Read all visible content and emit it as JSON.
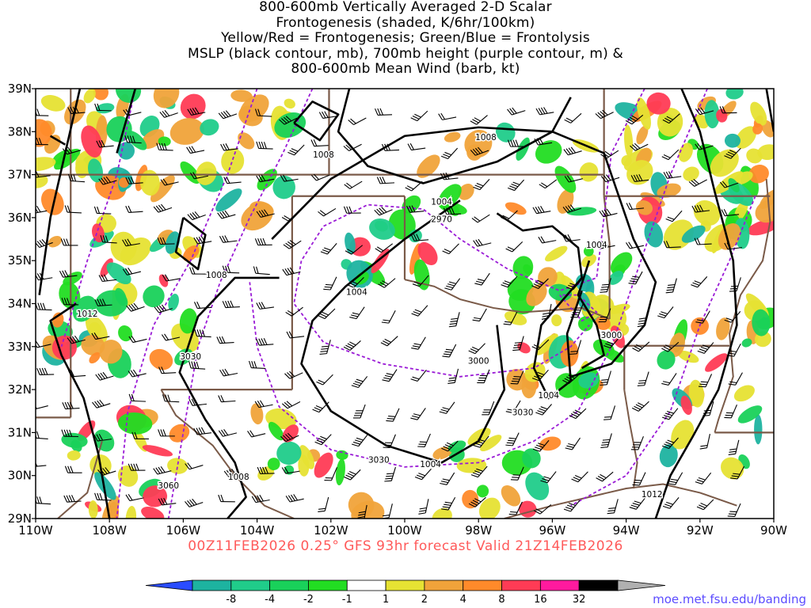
{
  "title": {
    "lines": [
      "800-600mb Vertically Averaged 2-D Scalar",
      "Frontogenesis (shaded, K/6hr/100km)",
      "Yellow/Red = Frontogenesis;  Green/Blue = Frontolysis",
      "MSLP (black contour, mb), 700mb height (purple contour, m) &",
      "800-600mb Mean Wind (barb, kt)"
    ]
  },
  "valid_text": "00Z11FEB2026 0.25° GFS 93hr forecast Valid 21Z14FEB2026",
  "credit": "moe.met.fsu.edu/banding",
  "map": {
    "lon_range": [
      -110,
      -90
    ],
    "lat_range": [
      29,
      39
    ],
    "lon_labels": [
      "110W",
      "108W",
      "106W",
      "104W",
      "102W",
      "100W",
      "98W",
      "96W",
      "94W",
      "92W",
      "90W"
    ],
    "lat_labels": [
      "29N",
      "30N",
      "31N",
      "32N",
      "33N",
      "34N",
      "35N",
      "36N",
      "37N",
      "38N",
      "39N"
    ]
  },
  "contour_labels": {
    "mslp": [
      {
        "text": "1008",
        "lon": -97.8,
        "lat": 37.8
      },
      {
        "text": "1008",
        "lon": -102.2,
        "lat": 37.4
      },
      {
        "text": "1004",
        "lon": -99.0,
        "lat": 36.3
      },
      {
        "text": "1004",
        "lon": -94.8,
        "lat": 35.3
      },
      {
        "text": "1008",
        "lon": -105.1,
        "lat": 34.6
      },
      {
        "text": "1004",
        "lon": -101.3,
        "lat": 34.2
      },
      {
        "text": "1012",
        "lon": -108.6,
        "lat": 33.7
      },
      {
        "text": "1004",
        "lon": -96.1,
        "lat": 31.8
      },
      {
        "text": "1004",
        "lon": -99.3,
        "lat": 30.2
      },
      {
        "text": "1008",
        "lon": -104.5,
        "lat": 29.9
      },
      {
        "text": "1012",
        "lon": -93.3,
        "lat": 29.5
      }
    ],
    "hgt700": [
      {
        "text": "2970",
        "lon": -99.0,
        "lat": 35.9
      },
      {
        "text": "3030",
        "lon": -105.8,
        "lat": 32.7
      },
      {
        "text": "3000",
        "lon": -98.0,
        "lat": 32.6
      },
      {
        "text": "3000",
        "lon": -94.4,
        "lat": 33.2
      },
      {
        "text": "3030",
        "lon": -96.8,
        "lat": 31.4
      },
      {
        "text": "3030",
        "lon": -100.7,
        "lat": 30.3
      },
      {
        "text": "3060",
        "lon": -106.4,
        "lat": 29.7
      }
    ]
  },
  "legend": {
    "labels": [
      "-8",
      "-4",
      "-2",
      "-1",
      "1",
      "2",
      "4",
      "8",
      "16",
      "32"
    ],
    "colors": [
      "#2a4cff",
      "#1db3a0",
      "#20cc8a",
      "#19d15a",
      "#22dd22",
      "#ffffff",
      "#e6e233",
      "#f0a33a",
      "#ff8a2a",
      "#ff3b55",
      "#ff1a9e",
      "#000000",
      "#b0b0b0"
    ]
  }
}
